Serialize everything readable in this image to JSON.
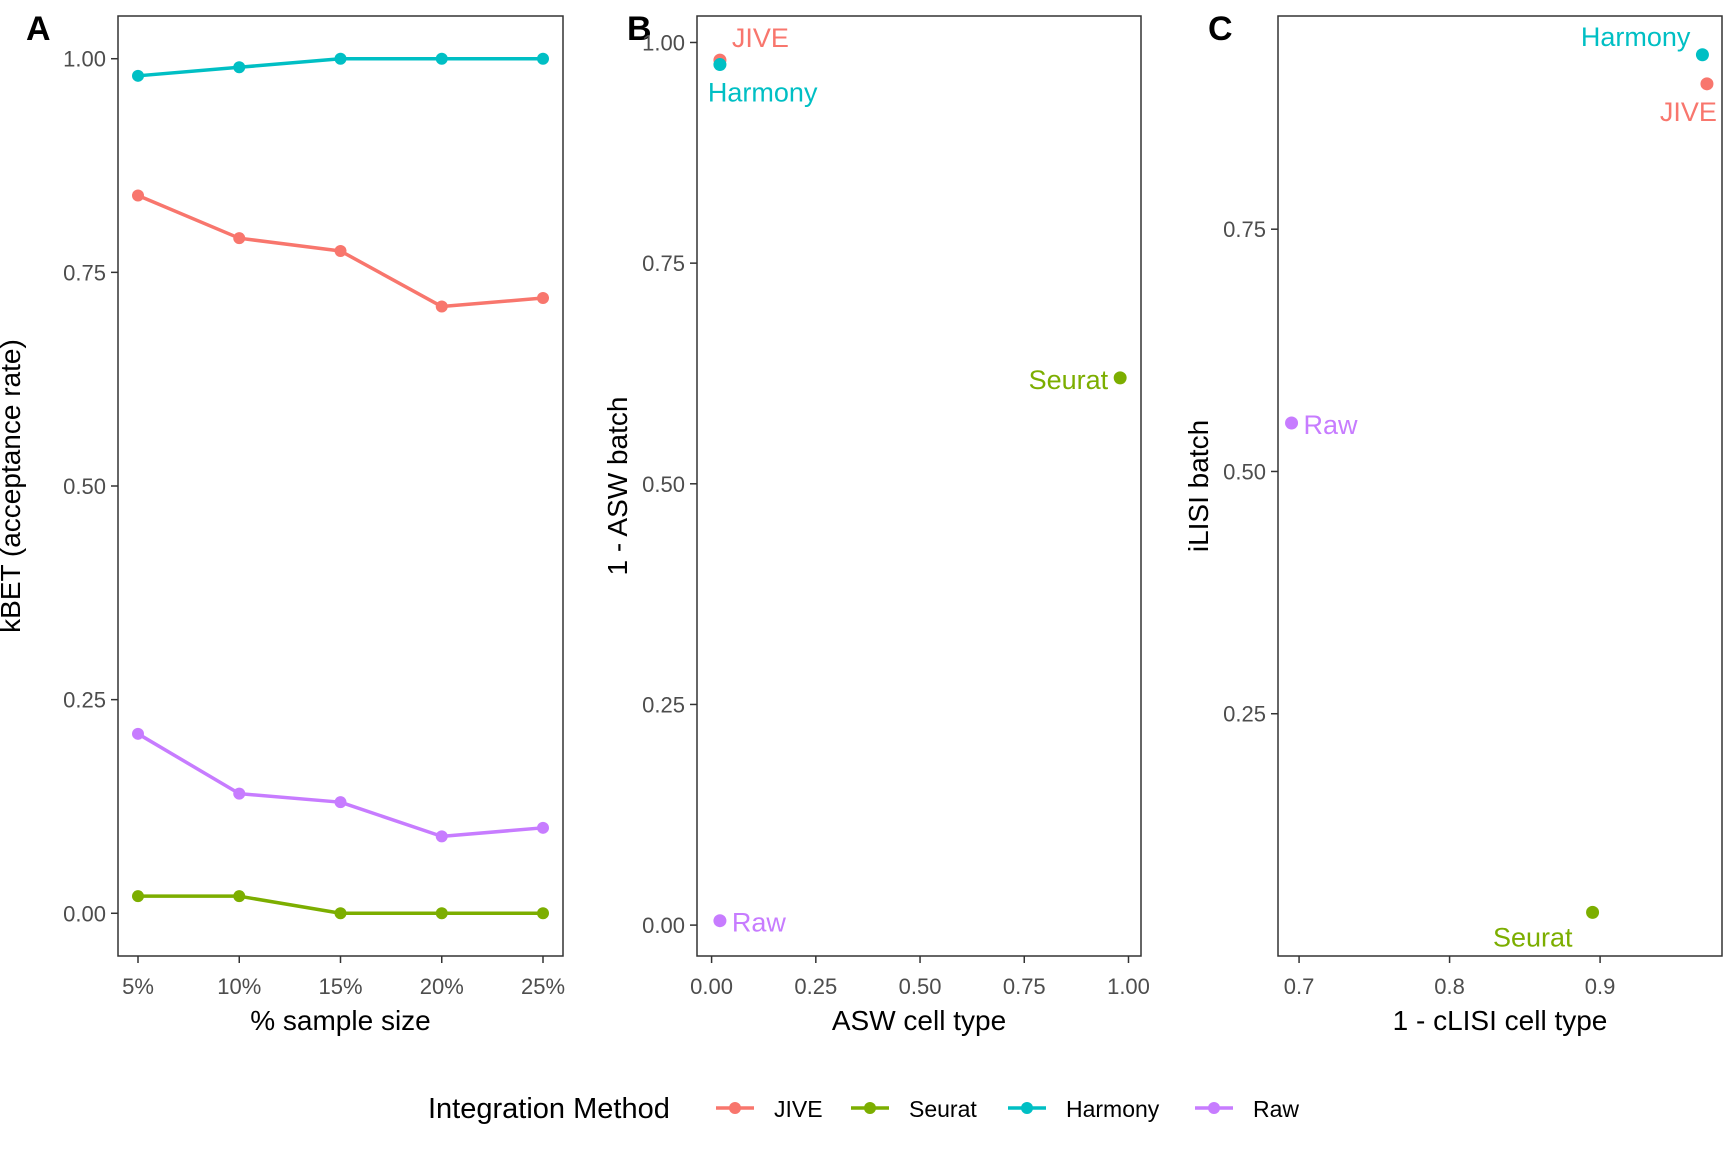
{
  "colors": {
    "JIVE": "#F8766D",
    "Seurat": "#7CAE00",
    "Harmony": "#00BFC4",
    "Raw": "#C77CFF"
  },
  "chart_data": [
    {
      "panel": "A",
      "type": "line",
      "xlabel": "% sample size",
      "ylabel": "kBET (acceptance rate)",
      "categories": [
        "5%",
        "10%",
        "15%",
        "20%",
        "25%"
      ],
      "ylim": [
        -0.05,
        1.05
      ],
      "yticks": [
        0.0,
        0.25,
        0.5,
        0.75,
        1.0
      ],
      "ytick_labels": [
        "0.00",
        "0.25",
        "0.50",
        "0.75",
        "1.00"
      ],
      "grid": false,
      "series": [
        {
          "name": "JIVE",
          "values": [
            0.84,
            0.79,
            0.775,
            0.71,
            0.72
          ]
        },
        {
          "name": "Seurat",
          "values": [
            0.02,
            0.02,
            0.0,
            0.0,
            0.0
          ]
        },
        {
          "name": "Harmony",
          "values": [
            0.98,
            0.99,
            1.0,
            1.0,
            1.0
          ]
        },
        {
          "name": "Raw",
          "values": [
            0.21,
            0.14,
            0.13,
            0.09,
            0.1
          ]
        }
      ]
    },
    {
      "panel": "B",
      "type": "scatter",
      "xlabel": "ASW cell type",
      "ylabel": "1 - ASW batch",
      "xlim": [
        -0.035,
        1.03
      ],
      "ylim": [
        -0.035,
        1.03
      ],
      "xticks": [
        0.0,
        0.25,
        0.5,
        0.75,
        1.0
      ],
      "xtick_labels": [
        "0.00",
        "0.25",
        "0.50",
        "0.75",
        "1.00"
      ],
      "yticks": [
        0.0,
        0.25,
        0.5,
        0.75,
        1.0
      ],
      "ytick_labels": [
        "0.00",
        "0.25",
        "0.50",
        "0.75",
        "1.00"
      ],
      "grid": false,
      "points": [
        {
          "name": "JIVE",
          "x": 0.02,
          "y": 0.98
        },
        {
          "name": "Harmony",
          "x": 0.02,
          "y": 0.975
        },
        {
          "name": "Seurat",
          "x": 0.98,
          "y": 0.62
        },
        {
          "name": "Raw",
          "x": 0.02,
          "y": 0.005
        }
      ]
    },
    {
      "panel": "C",
      "type": "scatter",
      "xlabel": "1 - cLISI cell type",
      "ylabel": "iLISI batch",
      "xlim": [
        0.686,
        0.981
      ],
      "ylim": [
        0.0,
        0.97
      ],
      "xticks": [
        0.7,
        0.8,
        0.9
      ],
      "xtick_labels": [
        "0.7",
        "0.8",
        "0.9"
      ],
      "yticks": [
        0.25,
        0.5,
        0.75
      ],
      "ytick_labels": [
        "0.25",
        "0.50",
        "0.75"
      ],
      "grid": false,
      "points": [
        {
          "name": "Harmony",
          "x": 0.968,
          "y": 0.93
        },
        {
          "name": "JIVE",
          "x": 0.971,
          "y": 0.9
        },
        {
          "name": "Raw",
          "x": 0.695,
          "y": 0.55
        },
        {
          "name": "Seurat",
          "x": 0.895,
          "y": 0.045
        }
      ]
    }
  ],
  "legend": {
    "title": "Integration Method",
    "placement": "bottom",
    "items": [
      "JIVE",
      "Seurat",
      "Harmony",
      "Raw"
    ]
  }
}
